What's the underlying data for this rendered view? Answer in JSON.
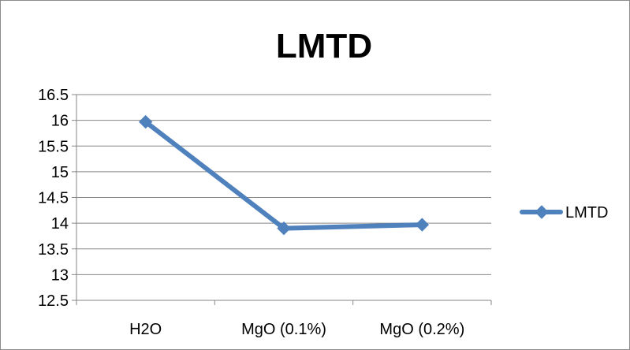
{
  "chart_data": {
    "type": "line",
    "title": "LMTD",
    "categories": [
      "H2O",
      "MgO (0.1%)",
      "MgO (0.2%)"
    ],
    "series": [
      {
        "name": "LMTD",
        "values": [
          15.97,
          13.9,
          13.97
        ],
        "color": "#4f81bd",
        "marker": "diamond"
      }
    ],
    "xlabel": "",
    "ylabel": "",
    "ylim": [
      12.5,
      16.5
    ],
    "yticks": [
      12.5,
      13,
      13.5,
      14,
      14.5,
      15,
      15.5,
      16,
      16.5
    ],
    "ytick_labels": [
      "12.5",
      "13",
      "13.5",
      "14",
      "14.5",
      "15",
      "15.5",
      "16",
      "16.5"
    ],
    "grid": true,
    "legend_position": "right"
  }
}
